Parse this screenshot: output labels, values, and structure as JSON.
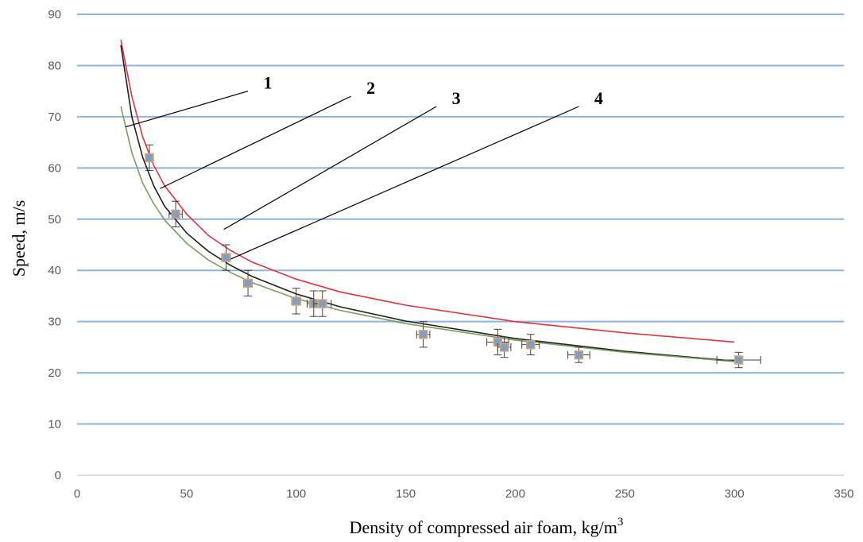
{
  "chart_data": {
    "type": "scatter",
    "xlabel": "Density of compressed air foam, kg/m",
    "xlabel_superscript": "3",
    "ylabel": "Speed, m/s",
    "xlim": [
      0,
      350
    ],
    "ylim": [
      0,
      90
    ],
    "x_ticks": [
      0,
      50,
      100,
      150,
      200,
      250,
      300,
      350
    ],
    "y_ticks": [
      0,
      10,
      20,
      30,
      40,
      50,
      60,
      70,
      80,
      90
    ],
    "grid": "horizontal",
    "colors": {
      "grid": "#8EB4E3",
      "marker_fill": "#7F9FC2",
      "marker_edge": "#E0A070",
      "error_bar": "#404040",
      "curve_red": "#E0343A",
      "curve_black": "#202020",
      "curve_green": "#77A05A"
    },
    "points": [
      {
        "x": 33,
        "y": 62.0,
        "ex": 0,
        "ey": 2.5
      },
      {
        "x": 45,
        "y": 51.0,
        "ex": 3,
        "ey": 2.5
      },
      {
        "x": 68,
        "y": 42.5,
        "ex": 2,
        "ey": 2.5
      },
      {
        "x": 78,
        "y": 37.5,
        "ex": 2,
        "ey": 2.5
      },
      {
        "x": 100,
        "y": 34.0,
        "ex": 2,
        "ey": 2.5
      },
      {
        "x": 108,
        "y": 33.5,
        "ex": 3,
        "ey": 2.5
      },
      {
        "x": 112,
        "y": 33.5,
        "ex": 4,
        "ey": 2.5
      },
      {
        "x": 158,
        "y": 27.5,
        "ex": 3,
        "ey": 2.5
      },
      {
        "x": 192,
        "y": 26.0,
        "ex": 5,
        "ey": 2.5
      },
      {
        "x": 195,
        "y": 25.0,
        "ex": 3,
        "ey": 2.0
      },
      {
        "x": 207,
        "y": 25.5,
        "ex": 4,
        "ey": 2.0
      },
      {
        "x": 229,
        "y": 23.5,
        "ex": 5,
        "ey": 1.5
      },
      {
        "x": 302,
        "y": 22.5,
        "ex": 10,
        "ey": 1.5
      }
    ],
    "series": [
      {
        "color": "curve_red",
        "x": [
          20,
          25,
          30,
          35,
          40,
          50,
          60,
          70,
          80,
          100,
          120,
          150,
          200,
          250,
          300
        ],
        "y": [
          85,
          74,
          66,
          60.5,
          56.5,
          51,
          46.8,
          43.9,
          41.6,
          38.3,
          35.8,
          33.2,
          30,
          27.8,
          26
        ]
      },
      {
        "color": "curve_black",
        "x": [
          20,
          25,
          30,
          35,
          40,
          50,
          60,
          70,
          80,
          100,
          120,
          150,
          200,
          250,
          300
        ],
        "y": [
          84,
          70,
          62,
          56.5,
          52.5,
          47.3,
          43.7,
          41,
          38.8,
          35.4,
          32.9,
          30.1,
          26.7,
          24.2,
          22.3
        ]
      },
      {
        "color": "curve_green",
        "x": [
          20,
          25,
          30,
          35,
          40,
          50,
          60,
          70,
          80,
          100,
          120,
          150,
          200,
          250,
          300
        ],
        "y": [
          72,
          63,
          57,
          53,
          49.8,
          45.3,
          42,
          39.6,
          37.6,
          34.5,
          32.2,
          29.6,
          26.4,
          24,
          22.2
        ]
      }
    ],
    "callouts": [
      {
        "label": "1",
        "from": [
          22,
          68
        ],
        "to": [
          78,
          75
        ]
      },
      {
        "label": "2",
        "from": [
          38,
          56
        ],
        "to": [
          125,
          74
        ]
      },
      {
        "label": "3",
        "from": [
          67,
          48
        ],
        "to": [
          164,
          72
        ]
      },
      {
        "label": "4",
        "from": [
          69,
          42
        ],
        "to": [
          229,
          72
        ]
      }
    ]
  }
}
